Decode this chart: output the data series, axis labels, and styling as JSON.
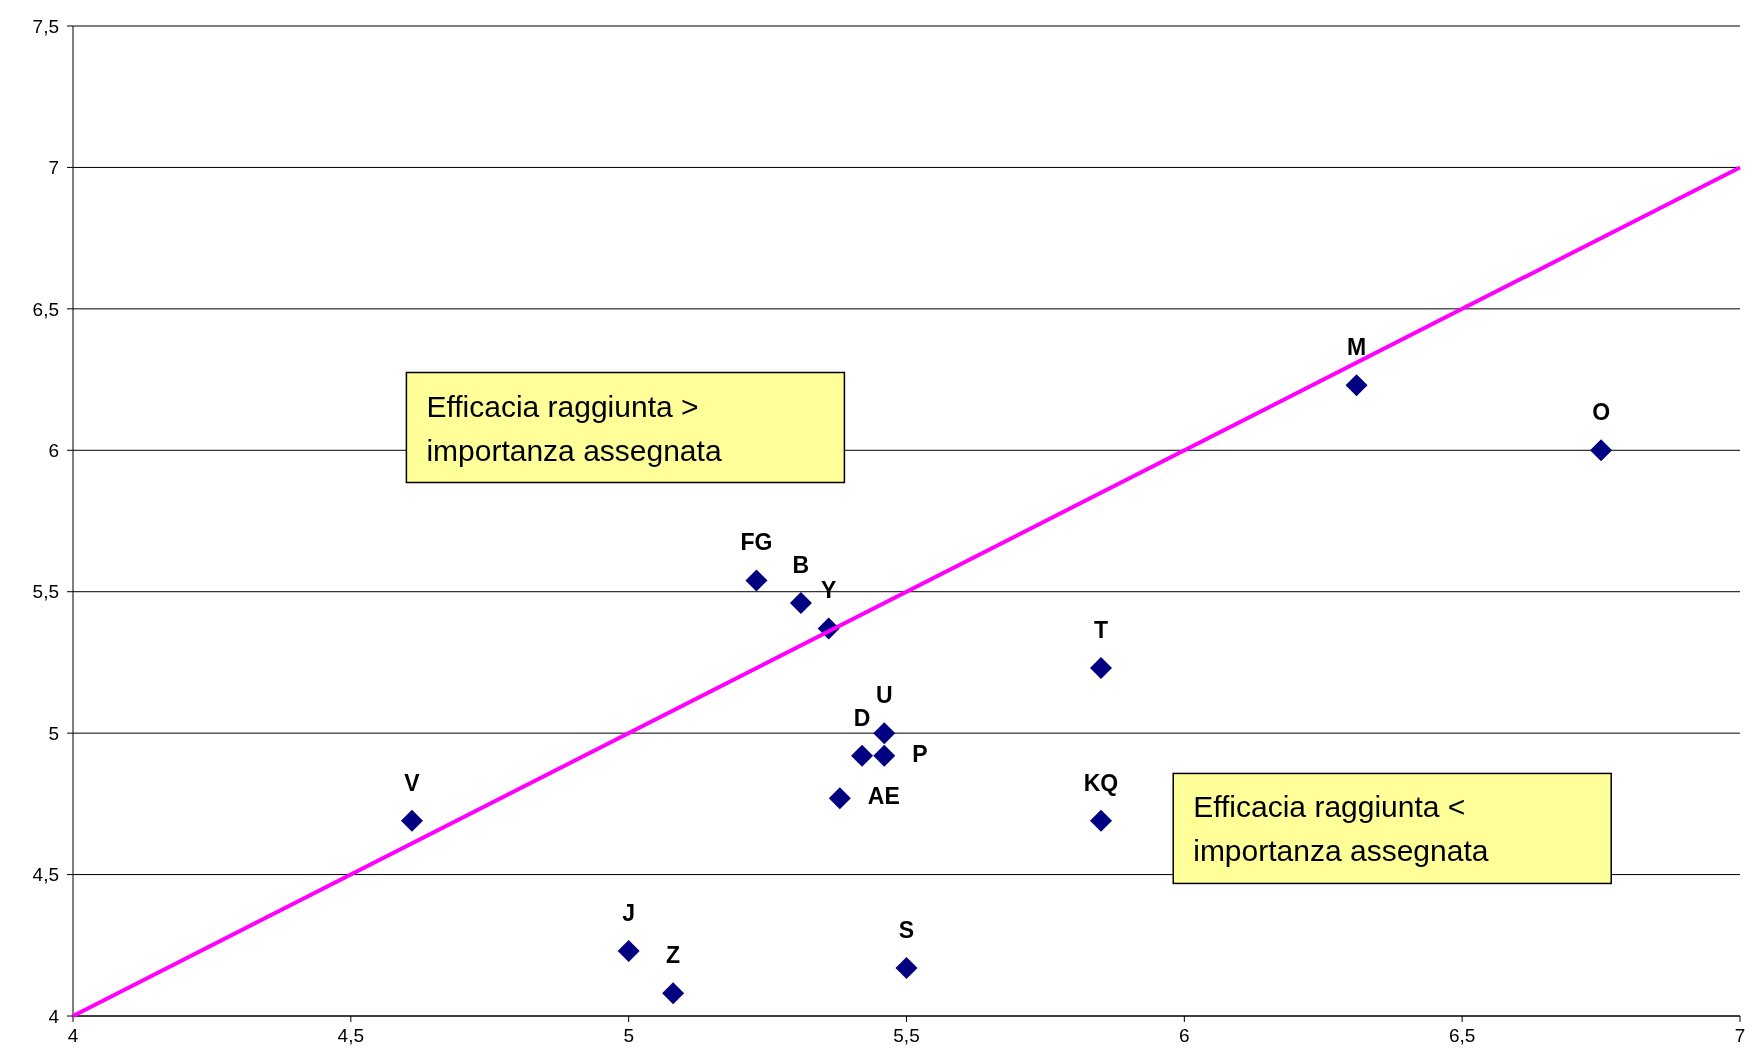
{
  "chart_data": {
    "type": "scatter",
    "xlim": [
      4,
      7
    ],
    "ylim": [
      4,
      7.5
    ],
    "xticks": [
      4,
      {
        "value": 4.5,
        "label": "4,5"
      },
      5,
      {
        "value": 5.5,
        "label": "5,5"
      },
      6,
      {
        "value": 6.5,
        "label": "6,5"
      },
      7
    ],
    "yticks": [
      4,
      {
        "value": 4.5,
        "label": "4,5"
      },
      5,
      {
        "value": 5.5,
        "label": "5,5"
      },
      6,
      {
        "value": 6.5,
        "label": "6,5"
      },
      7,
      {
        "value": 7.5,
        "label": "7,5"
      }
    ],
    "grid": "y",
    "series": [
      {
        "color": "#000080",
        "marker": "diamond",
        "x": [
          4.61,
          5.0,
          5.08,
          5.23,
          5.31,
          5.36,
          5.42,
          5.46,
          5.46,
          5.38,
          5.5,
          5.85,
          5.85,
          6.31,
          6.75
        ],
        "values": [
          4.69,
          4.23,
          4.08,
          5.54,
          5.46,
          5.37,
          4.92,
          5.0,
          4.92,
          4.77,
          4.17,
          5.23,
          4.69,
          6.23,
          6.0
        ],
        "value_labels": [
          "V",
          "J",
          "Z",
          "FG",
          "B",
          "Y",
          "D",
          "U",
          "P",
          "AE",
          "S",
          "T",
          "KQ",
          "M",
          "O"
        ]
      },
      {
        "type": "line",
        "color": "#ff00ff",
        "x": [
          4,
          7
        ],
        "values": [
          4,
          7
        ],
        "marker": "none",
        "line_style": "solid"
      }
    ],
    "annotations": [
      "Efficacia raggiunta > importanza assegnata",
      "Efficacia raggiunta < importanza assegnata"
    ]
  }
}
